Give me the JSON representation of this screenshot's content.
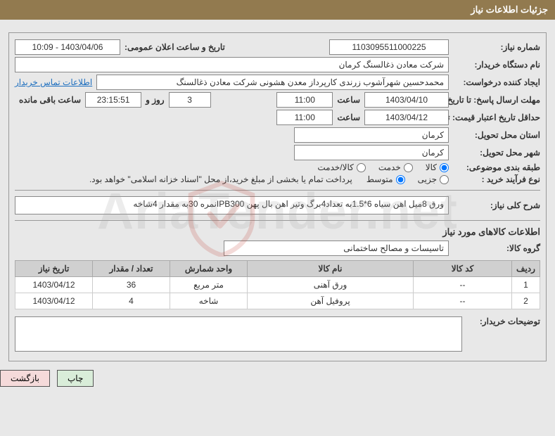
{
  "colors": {
    "header_bg": "#927a4f",
    "header_fg": "#ffffff",
    "border": "#999999",
    "field_border": "#888888",
    "link": "#1e6fbf",
    "btn_print_bg": "#d9edd9",
    "btn_back_bg": "#f5dada",
    "watermark": "rgba(170,170,170,0.22)"
  },
  "header": {
    "title": "جزئیات اطلاعات نیاز"
  },
  "watermark_text": "AriaTender.net",
  "fields": {
    "need_no_label": "شماره نیاز:",
    "need_no": "1103095511000225",
    "announce_label": "تاریخ و ساعت اعلان عمومی:",
    "announce": "1403/04/06 - 10:09",
    "buyer_org_label": "نام دستگاه خریدار:",
    "buyer_org": "شرکت معادن ذغالسنگ کرمان",
    "requester_label": "ایجاد کننده درخواست:",
    "requester": "محمدحسین شهرآشوب زرندی کارپرداز معدن هشونی شرکت معادن ذغالسنگ",
    "contact_link": "اطلاعات تماس خریدار",
    "deadline_send_label": "مهلت ارسال پاسخ: تا تاریخ:",
    "deadline_send_date": "1403/04/10",
    "time_label": "ساعت",
    "deadline_send_time": "11:00",
    "days_label_val": "3",
    "days_and": "روز و",
    "countdown": "23:15:51",
    "remain_label": "ساعت باقی مانده",
    "validity_label": "حداقل تاریخ اعتبار قیمت: تا تاریخ:",
    "validity_date": "1403/04/12",
    "validity_time": "11:00",
    "province_label": "استان محل تحویل:",
    "province": "کرمان",
    "city_label": "شهر محل تحویل:",
    "city": "کرمان",
    "category_label": "طبقه بندی موضوعی:",
    "cat_opts": {
      "kala": "کالا",
      "khadamat": "خدمت",
      "kala_khadamat": "کالا/خدمت"
    },
    "purchase_type_label": "نوع فرآیند خرید :",
    "pt_opts": {
      "jozi": "جزیی",
      "motevaset": "متوسط"
    },
    "payment_note": "پرداخت تمام یا بخشی از مبلغ خرید،از محل \"اسناد خزانه اسلامی\" خواهد بود.",
    "desc_label": "شرح کلی نیاز:",
    "desc": "ورق 8میل اهن سیاه 6*1.5به تعداد4برگ وتیر اهن بال پهن IPB300نمره 30به مقدار 4شاخه",
    "goods_info_title": "اطلاعات کالاهای مورد نیاز",
    "group_label": "گروه کالا:",
    "group": "تاسیسات و مصالح ساختمانی",
    "buyer_notes_label": "توضیحات خریدار:",
    "buyer_notes": ""
  },
  "table": {
    "headers": {
      "row": "ردیف",
      "code": "کد کالا",
      "name": "نام کالا",
      "unit": "واحد شمارش",
      "qty": "تعداد / مقدار",
      "need_date": "تاریخ نیاز"
    },
    "rows": [
      {
        "row": "1",
        "code": "--",
        "name": "ورق آهنی",
        "unit": "متر مربع",
        "qty": "36",
        "need_date": "1403/04/12"
      },
      {
        "row": "2",
        "code": "--",
        "name": "پروفیل آهن",
        "unit": "شاخه",
        "qty": "4",
        "need_date": "1403/04/12"
      }
    ],
    "col_widths": {
      "row": "40px",
      "code": "140px",
      "name": "auto",
      "unit": "110px",
      "qty": "110px",
      "need_date": "110px"
    }
  },
  "actions": {
    "print": "چاپ",
    "back": "بازگشت"
  }
}
